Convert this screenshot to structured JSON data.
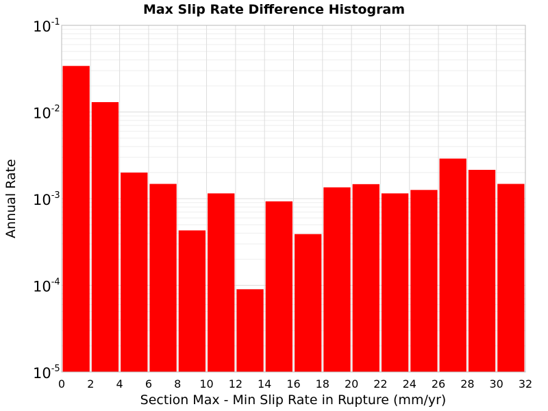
{
  "chart_data": {
    "type": "bar",
    "title": "Max Slip Rate Difference Histogram",
    "xlabel": "Section Max - Min Slip Rate in Rupture (mm/yr)",
    "ylabel": "Annual Rate",
    "xlim": [
      0,
      32
    ],
    "ylim": [
      1e-05,
      0.1
    ],
    "yscale": "log",
    "bar_width": 2,
    "bar_color": "#ff0000",
    "grid": true,
    "x_ticks": [
      "0",
      "2",
      "4",
      "6",
      "8",
      "10",
      "12",
      "14",
      "16",
      "18",
      "20",
      "22",
      "24",
      "26",
      "28",
      "30",
      "32"
    ],
    "y_ticks": [
      {
        "base": "10",
        "exp": "-5",
        "value": 1e-05
      },
      {
        "base": "10",
        "exp": "-4",
        "value": 0.0001
      },
      {
        "base": "10",
        "exp": "-3",
        "value": 0.001
      },
      {
        "base": "10",
        "exp": "-2",
        "value": 0.01
      },
      {
        "base": "10",
        "exp": "-1",
        "value": 0.1
      }
    ],
    "bars": [
      {
        "x": 1,
        "value": 0.034
      },
      {
        "x": 3,
        "value": 0.013
      },
      {
        "x": 5,
        "value": 0.002
      },
      {
        "x": 7,
        "value": 0.00148
      },
      {
        "x": 9,
        "value": 0.00043
      },
      {
        "x": 11,
        "value": 0.00115
      },
      {
        "x": 13,
        "value": 9e-05
      },
      {
        "x": 15,
        "value": 0.00093
      },
      {
        "x": 17,
        "value": 0.00039
      },
      {
        "x": 19,
        "value": 0.00135
      },
      {
        "x": 21,
        "value": 0.00147
      },
      {
        "x": 23,
        "value": 0.00115
      },
      {
        "x": 25,
        "value": 0.00126
      },
      {
        "x": 27,
        "value": 0.0029
      },
      {
        "x": 29,
        "value": 0.00215
      },
      {
        "x": 31,
        "value": 0.00148
      }
    ]
  }
}
